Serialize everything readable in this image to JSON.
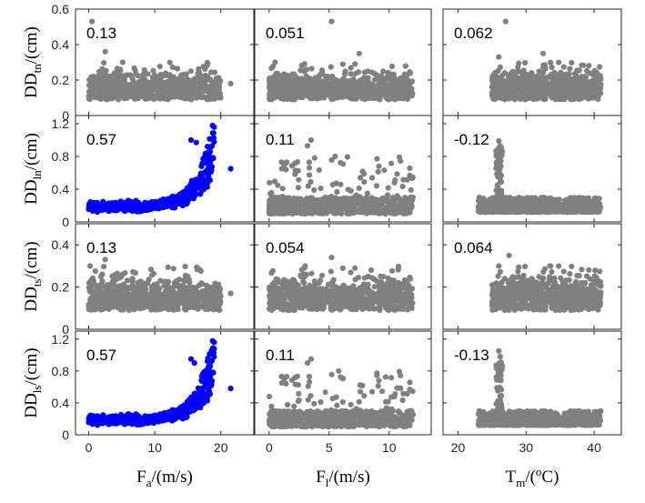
{
  "chart_data": {
    "type": "scatter",
    "layout": "4x3 grid of scatter panels",
    "colors": {
      "highlight": "#0000ff",
      "default": "#808080",
      "axis": "#262626"
    },
    "rows": [
      {
        "ylabel": {
          "main": "DD",
          "sub": "tn",
          "unit": "/(cm)"
        },
        "yticks": [
          "0",
          "0.2",
          "0.4",
          "0.6"
        ],
        "ylim": [
          0,
          0.6
        ]
      },
      {
        "ylabel": {
          "main": "DD",
          "sub": "ln",
          "unit": "/(cm)"
        },
        "yticks": [
          "0",
          "0.4",
          "0.8",
          "1.2"
        ],
        "ylim": [
          0,
          1.3
        ]
      },
      {
        "ylabel": {
          "main": "DD",
          "sub": "ts",
          "unit": "/(cm)"
        },
        "yticks": [
          "0",
          "0.2",
          "0.4"
        ],
        "ylim": [
          0,
          0.5
        ]
      },
      {
        "ylabel": {
          "main": "DD",
          "sub": "ls",
          "unit": "/(cm)"
        },
        "yticks": [
          "0",
          "0.4",
          "0.8",
          "1.2"
        ],
        "ylim": [
          0,
          1.3
        ]
      }
    ],
    "columns": [
      {
        "xlabel": {
          "main": "F",
          "sub": "a",
          "unit": "/(m/s)"
        },
        "xticks": [
          "0",
          "10",
          "20"
        ],
        "xlim": [
          -2,
          25
        ]
      },
      {
        "xlabel": {
          "main": "F",
          "sub": "l",
          "unit": "/(m/s)"
        },
        "xticks": [
          "0",
          "5",
          "10"
        ],
        "xlim": [
          -1.2,
          13.5
        ]
      },
      {
        "xlabel": {
          "main": "T",
          "sub": "m",
          "unit": "/(",
          "sup": "o",
          "unit_end": "C)"
        },
        "xticks": [
          "20",
          "30",
          "40"
        ],
        "xlim": [
          17.8,
          44
        ]
      }
    ],
    "panels": [
      {
        "row": 0,
        "col": 0,
        "correlation": "0.13",
        "color": "gray",
        "x_range": [
          0,
          20
        ],
        "y_base": [
          0.1,
          0.2
        ],
        "trend": "flat",
        "outliers": [
          [
            0.5,
            0.53
          ],
          [
            2.5,
            0.36
          ],
          [
            21.5,
            0.18
          ]
        ]
      },
      {
        "row": 0,
        "col": 1,
        "correlation": "0.051",
        "color": "gray",
        "x_range": [
          0,
          12
        ],
        "y_base": [
          0.1,
          0.2
        ],
        "trend": "flat",
        "outliers": [
          [
            5.2,
            0.53
          ],
          [
            7.5,
            0.35
          ],
          [
            0.5,
            0.3
          ]
        ]
      },
      {
        "row": 0,
        "col": 2,
        "correlation": "0.062",
        "color": "gray",
        "x_range": [
          25,
          41
        ],
        "y_base": [
          0.1,
          0.2
        ],
        "trend": "flat",
        "outliers": [
          [
            27,
            0.53
          ],
          [
            32.5,
            0.35
          ],
          [
            26,
            0.33
          ]
        ]
      },
      {
        "row": 1,
        "col": 0,
        "correlation": "0.57",
        "color": "blue",
        "x_range": [
          0,
          19
        ],
        "y_base": [
          0.1,
          0.25
        ],
        "trend": "exponential rise after x=10 to ~0.8",
        "outliers": [
          [
            21.5,
            0.65
          ],
          [
            15.5,
            1.0
          ],
          [
            16.3,
            0.97
          ]
        ]
      },
      {
        "row": 1,
        "col": 1,
        "correlation": "0.11",
        "color": "gray",
        "x_range": [
          0,
          12
        ],
        "y_base": [
          0.1,
          0.3
        ],
        "trend": "scattered cluster up to ~0.9",
        "outliers": [
          [
            3.5,
            1.0
          ],
          [
            3.2,
            0.93
          ],
          [
            5.5,
            0.8
          ]
        ]
      },
      {
        "row": 1,
        "col": 2,
        "correlation": "-0.12",
        "color": "gray",
        "x_range": [
          23,
          41
        ],
        "y_base": [
          0.1,
          0.3
        ],
        "trend": "spike near x=26 to ~1.0",
        "outliers": [
          [
            26,
            0.99
          ],
          [
            26.2,
            0.93
          ],
          [
            26.1,
            0.85
          ]
        ]
      },
      {
        "row": 2,
        "col": 0,
        "correlation": "0.13",
        "color": "gray",
        "x_range": [
          0,
          20
        ],
        "y_base": [
          0.1,
          0.2
        ],
        "trend": "flat",
        "outliers": [
          [
            2.5,
            0.33
          ],
          [
            21.5,
            0.17
          ],
          [
            0.2,
            0.3
          ]
        ]
      },
      {
        "row": 2,
        "col": 1,
        "correlation": "0.054",
        "color": "gray",
        "x_range": [
          0,
          12
        ],
        "y_base": [
          0.1,
          0.2
        ],
        "trend": "flat",
        "outliers": [
          [
            5.2,
            0.34
          ],
          [
            3.0,
            0.3
          ],
          [
            8.5,
            0.28
          ]
        ]
      },
      {
        "row": 2,
        "col": 2,
        "correlation": "0.064",
        "color": "gray",
        "x_range": [
          25,
          41
        ],
        "y_base": [
          0.1,
          0.2
        ],
        "trend": "flat",
        "outliers": [
          [
            27.5,
            0.35
          ],
          [
            33.5,
            0.3
          ],
          [
            26,
            0.3
          ]
        ]
      },
      {
        "row": 3,
        "col": 0,
        "correlation": "0.57",
        "color": "blue",
        "x_range": [
          0,
          19
        ],
        "y_base": [
          0.1,
          0.25
        ],
        "trend": "exponential rise after x=10 to ~0.8",
        "outliers": [
          [
            21.5,
            0.58
          ],
          [
            15.5,
            0.95
          ],
          [
            16.0,
            0.9
          ]
        ]
      },
      {
        "row": 3,
        "col": 1,
        "correlation": "0.11",
        "color": "gray",
        "x_range": [
          0,
          12
        ],
        "y_base": [
          0.1,
          0.3
        ],
        "trend": "scattered cluster up to ~0.9",
        "outliers": [
          [
            3.5,
            0.95
          ],
          [
            3.2,
            0.9
          ],
          [
            5.8,
            0.8
          ]
        ]
      },
      {
        "row": 3,
        "col": 2,
        "correlation": "-0.13",
        "color": "gray",
        "x_range": [
          23,
          41
        ],
        "y_base": [
          0.1,
          0.3
        ],
        "trend": "spike near x=26 to ~1.05",
        "outliers": [
          [
            26,
            1.05
          ],
          [
            26.2,
            0.98
          ],
          [
            26.1,
            0.9
          ]
        ]
      }
    ]
  }
}
